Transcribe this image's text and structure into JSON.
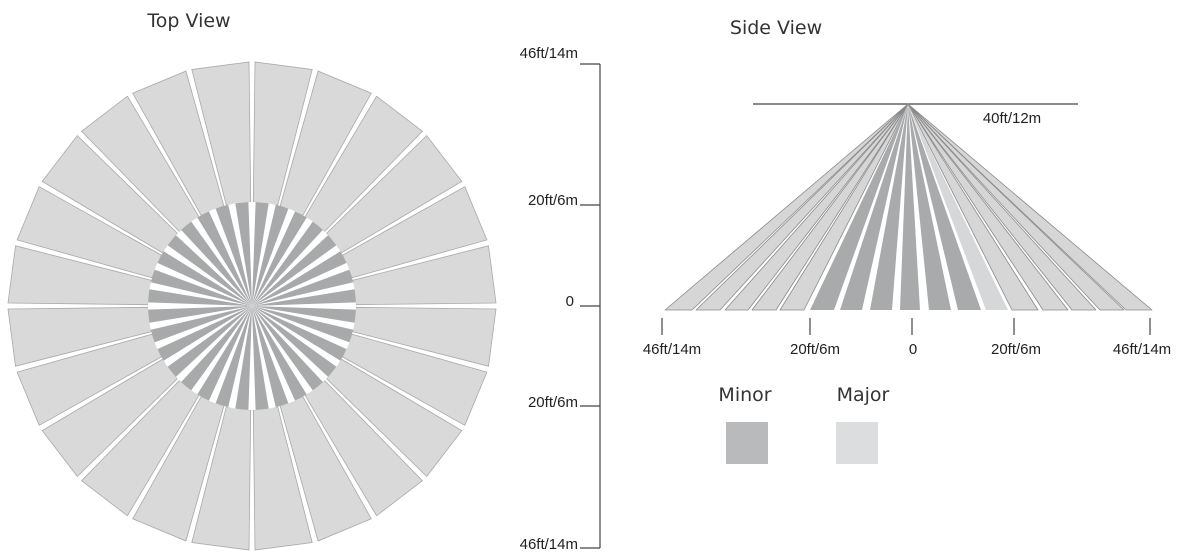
{
  "top_view": {
    "title": "Top View",
    "outer_segment_count": 24,
    "inner_segment_count": 32
  },
  "side_view": {
    "title": "Side View",
    "height_label": "40ft/12m",
    "ground_ticks": [
      "46ft/14m",
      "20ft/6m",
      "0",
      "20ft/6m",
      "46ft/14m"
    ]
  },
  "vertical_scale": {
    "ticks": [
      "46ft/14m",
      "20ft/6m",
      "0",
      "20ft/6m",
      "46ft/14m"
    ]
  },
  "legend": {
    "items": [
      {
        "label": "Minor",
        "color": "#b9babc"
      },
      {
        "label": "Major",
        "color": "#dcdddf"
      }
    ]
  },
  "colors": {
    "outer_fill": "#d9d9d9",
    "outer_stroke": "#a9a9a9",
    "inner_fill": "#a8a9ab",
    "minor_fill": "#a9aaac",
    "major_fill": "#d6d7d9",
    "side_outer_fill": "#d6d6d6",
    "side_stroke": "#8a8a8a"
  }
}
